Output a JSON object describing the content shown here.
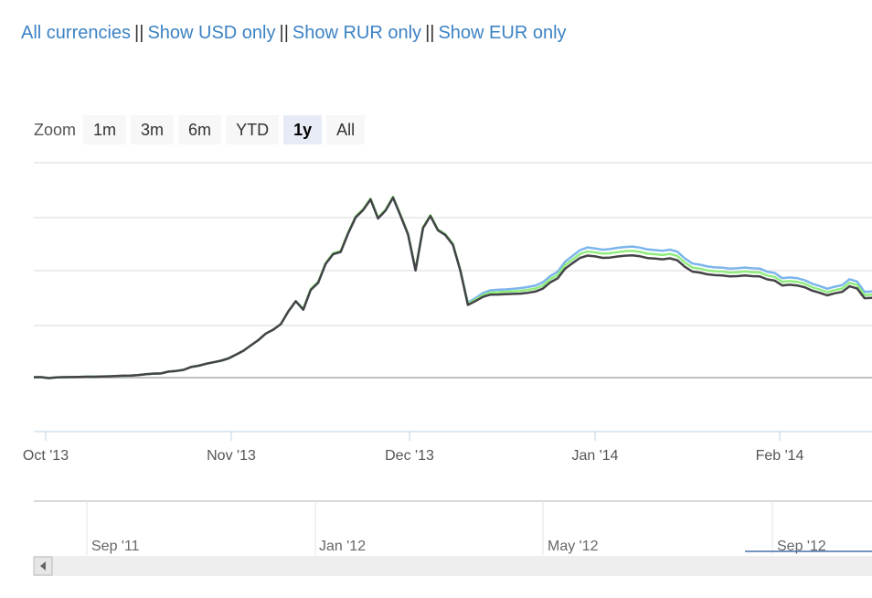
{
  "links": {
    "all": "All currencies",
    "usd": "Show USD only",
    "rur": "Show RUR only",
    "eur": "Show EUR only",
    "separator": "||"
  },
  "zoom": {
    "label": "Zoom",
    "buttons": [
      "1m",
      "3m",
      "6m",
      "YTD",
      "1y",
      "All"
    ],
    "active": "1y"
  },
  "navigator": {
    "labels": [
      "Sep '11",
      "Jan '12",
      "May '12",
      "Sep '12"
    ]
  },
  "chart_data": {
    "type": "line",
    "x_ticks": [
      "Oct '13",
      "Nov '13",
      "Dec '13",
      "Jan '14",
      "Feb '14"
    ],
    "x_range": [
      "2013-09-26",
      "2014-02-20"
    ],
    "y_gridlines": 5,
    "colors": {
      "blue": "#7cb5ec",
      "green": "#90ed7d",
      "black": "#434348"
    },
    "series": [
      {
        "color": "blue",
        "values": [
          0.5,
          0.5,
          -0.5,
          0.2,
          0.5,
          0.6,
          0.8,
          1.0,
          1.0,
          1.2,
          1.4,
          1.8,
          2.2,
          2.4,
          3.0,
          3.8,
          4.6,
          4.8,
          6.8,
          7.6,
          8.8,
          12.0,
          13.5,
          15.6,
          17.4,
          19.2,
          21.8,
          26.0,
          30.5,
          36.6,
          42.5,
          50.0,
          54.4,
          60.6,
          75.0,
          86.6,
          77.0,
          99.4,
          107.6,
          129.0,
          140.0,
          142.5,
          163.5,
          181.7,
          190.0,
          202.0,
          180.4,
          189.3,
          204.0,
          183.5,
          162.3,
          121.5,
          169.5,
          183.2,
          167.0,
          161.6,
          150.6,
          121.0,
          85.0,
          90.0,
          95.7,
          99.0,
          99.6,
          100.0,
          100.6,
          101.4,
          102.7,
          104.3,
          108.0,
          115.0,
          120.0,
          131.5,
          138.0,
          144.6,
          147.6,
          146.4,
          145.0,
          145.7,
          147.2,
          148.1,
          148.6,
          147.4,
          145.3,
          144.6,
          143.7,
          145.1,
          142.7,
          135.0,
          129.3,
          128.0,
          126.0,
          125.0,
          124.6,
          123.5,
          123.9,
          124.8,
          123.9,
          123.6,
          120.0,
          118.5,
          112.7,
          113.6,
          112.7,
          110.5,
          106.4,
          103.8,
          100.7,
          103.0,
          104.9,
          111.5,
          109.0,
          97.2,
          97.7
        ]
      },
      {
        "color": "green",
        "values": [
          0.5,
          0.5,
          -0.5,
          0.2,
          0.5,
          0.6,
          0.8,
          1.0,
          1.0,
          1.2,
          1.4,
          1.8,
          2.2,
          2.4,
          3.0,
          3.8,
          4.6,
          4.8,
          6.8,
          7.6,
          8.8,
          12.0,
          13.5,
          15.6,
          17.4,
          19.2,
          21.8,
          26.0,
          30.5,
          36.6,
          42.5,
          50.0,
          54.4,
          60.6,
          75.0,
          86.6,
          78.0,
          100.4,
          108.6,
          130.0,
          141.0,
          143.5,
          164.5,
          182.7,
          191.0,
          203.0,
          181.4,
          190.3,
          205.0,
          184.5,
          163.3,
          122.5,
          170.5,
          184.2,
          168.0,
          162.6,
          151.6,
          122.0,
          83.8,
          88.3,
          93.5,
          96.5,
          96.8,
          97.4,
          97.8,
          98.3,
          99.5,
          100.9,
          104.3,
          111.5,
          116.3,
          127.6,
          134.0,
          140.2,
          143.0,
          142.0,
          140.5,
          141.0,
          142.3,
          143.2,
          143.7,
          142.5,
          140.5,
          139.9,
          139.0,
          140.2,
          137.9,
          130.4,
          124.8,
          123.6,
          121.6,
          120.6,
          120.2,
          119.1,
          119.4,
          120.3,
          119.5,
          119.2,
          115.7,
          114.2,
          108.6,
          109.4,
          108.6,
          106.5,
          102.5,
          99.9,
          96.9,
          99.2,
          101.0,
          107.5,
          105.1,
          93.6,
          94.1
        ]
      },
      {
        "color": "black",
        "values": [
          0.5,
          0.5,
          -0.5,
          0.2,
          0.5,
          0.6,
          0.8,
          1.0,
          1.0,
          1.2,
          1.4,
          1.8,
          2.2,
          2.4,
          3.0,
          3.8,
          4.6,
          4.8,
          6.8,
          7.6,
          8.8,
          12.0,
          13.5,
          15.6,
          17.4,
          19.2,
          21.8,
          26.0,
          30.5,
          36.6,
          42.5,
          50.0,
          54.4,
          60.6,
          75.0,
          86.6,
          77.0,
          99.4,
          107.6,
          129.0,
          140.0,
          142.5,
          163.5,
          181.7,
          190.0,
          202.0,
          180.4,
          189.3,
          204.0,
          183.5,
          162.3,
          121.5,
          169.5,
          183.2,
          167.0,
          161.6,
          150.6,
          121.0,
          82.4,
          86.7,
          91.5,
          94.1,
          94.2,
          94.6,
          94.9,
          95.2,
          96.2,
          97.5,
          100.8,
          107.9,
          112.5,
          123.6,
          129.8,
          135.7,
          138.3,
          137.4,
          135.8,
          136.1,
          137.3,
          138.2,
          138.7,
          137.5,
          135.5,
          134.9,
          134.1,
          135.2,
          133.0,
          125.6,
          120.2,
          119.1,
          117.1,
          116.2,
          115.8,
          114.8,
          115.0,
          115.8,
          115.0,
          114.7,
          111.4,
          110.0,
          104.5,
          105.3,
          104.5,
          102.5,
          98.7,
          96.2,
          93.3,
          95.5,
          97.2,
          103.5,
          101.1,
          90.0,
          90.5
        ]
      }
    ]
  }
}
